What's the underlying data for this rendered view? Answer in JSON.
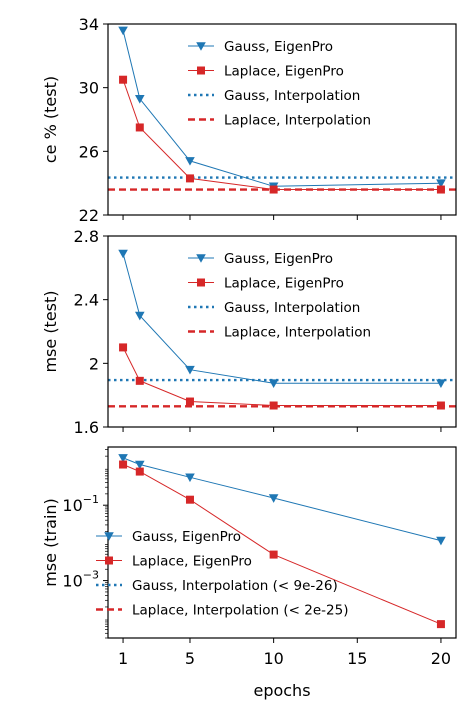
{
  "chart_data": [
    {
      "type": "line",
      "ylabel": "ce % (test)",
      "ylim": [
        22,
        34
      ],
      "yticks": [
        22,
        26,
        30,
        34
      ],
      "xlim": [
        0.1,
        20.9
      ],
      "legend_placement": "top-right",
      "series": [
        {
          "name": "Gauss, EigenPro",
          "kind": "marker-line",
          "marker": "triangle-down",
          "color": "#1f77b4",
          "x": [
            1,
            2,
            5,
            10,
            20
          ],
          "y": [
            33.6,
            29.3,
            25.4,
            23.8,
            24.0
          ]
        },
        {
          "name": "Laplace, EigenPro",
          "kind": "marker-line",
          "marker": "square",
          "color": "#d62728",
          "x": [
            1,
            2,
            5,
            10,
            20
          ],
          "y": [
            30.5,
            27.5,
            24.3,
            23.6,
            23.6
          ]
        },
        {
          "name": "Gauss, Interpolation",
          "kind": "dotted-hline",
          "color": "#1f77b4",
          "y": 24.35
        },
        {
          "name": "Laplace, Interpolation",
          "kind": "dashed-hline",
          "color": "#d62728",
          "y": 23.6
        }
      ]
    },
    {
      "type": "line",
      "ylabel": "mse (test)",
      "ylim": [
        1.6,
        2.8
      ],
      "yticks": [
        1.6,
        2.0,
        2.4,
        2.8
      ],
      "xlim": [
        0.1,
        20.9
      ],
      "legend_placement": "top-right",
      "series": [
        {
          "name": "Gauss, EigenPro",
          "kind": "marker-line",
          "marker": "triangle-down",
          "color": "#1f77b4",
          "x": [
            1,
            2,
            5,
            10,
            20
          ],
          "y": [
            2.69,
            2.3,
            1.96,
            1.875,
            1.875
          ]
        },
        {
          "name": "Laplace, EigenPro",
          "kind": "marker-line",
          "marker": "square",
          "color": "#d62728",
          "x": [
            1,
            2,
            5,
            10,
            20
          ],
          "y": [
            2.1,
            1.89,
            1.76,
            1.735,
            1.735
          ]
        },
        {
          "name": "Gauss, Interpolation",
          "kind": "dotted-hline",
          "color": "#1f77b4",
          "y": 1.895
        },
        {
          "name": "Laplace, Interpolation",
          "kind": "dashed-hline",
          "color": "#d62728",
          "y": 1.73
        }
      ]
    },
    {
      "type": "line",
      "ylabel": "mse (train)",
      "yscale": "log",
      "ylim": [
        3e-05,
        3.5
      ],
      "yticks": [
        {
          "value": 0.1,
          "base": "10",
          "exp": "−1"
        },
        {
          "value": 0.001,
          "base": "10",
          "exp": "−3"
        }
      ],
      "xlabel": "epochs",
      "xticks": [
        1,
        5,
        10,
        15,
        20
      ],
      "xlim": [
        0.1,
        20.9
      ],
      "legend_placement": "lower-left",
      "series": [
        {
          "name": "Gauss, EigenPro",
          "kind": "marker-line",
          "marker": "triangle-down",
          "color": "#1f77b4",
          "x": [
            1,
            2,
            5,
            10,
            20
          ],
          "y": [
            1.8,
            1.2,
            0.55,
            0.155,
            0.0115
          ]
        },
        {
          "name": "Laplace, EigenPro",
          "kind": "marker-line",
          "marker": "square",
          "color": "#d62728",
          "x": [
            1,
            2,
            5,
            10,
            20
          ],
          "y": [
            1.2,
            0.78,
            0.14,
            0.0049,
            7e-05
          ]
        },
        {
          "name": "Gauss, Interpolation (< 9e-26)",
          "kind": "dotted-hline",
          "color": "#1f77b4",
          "y": null
        },
        {
          "name": "Laplace, Interpolation (< 2e-25)",
          "kind": "dashed-hline",
          "color": "#d62728",
          "y": null
        }
      ]
    }
  ]
}
